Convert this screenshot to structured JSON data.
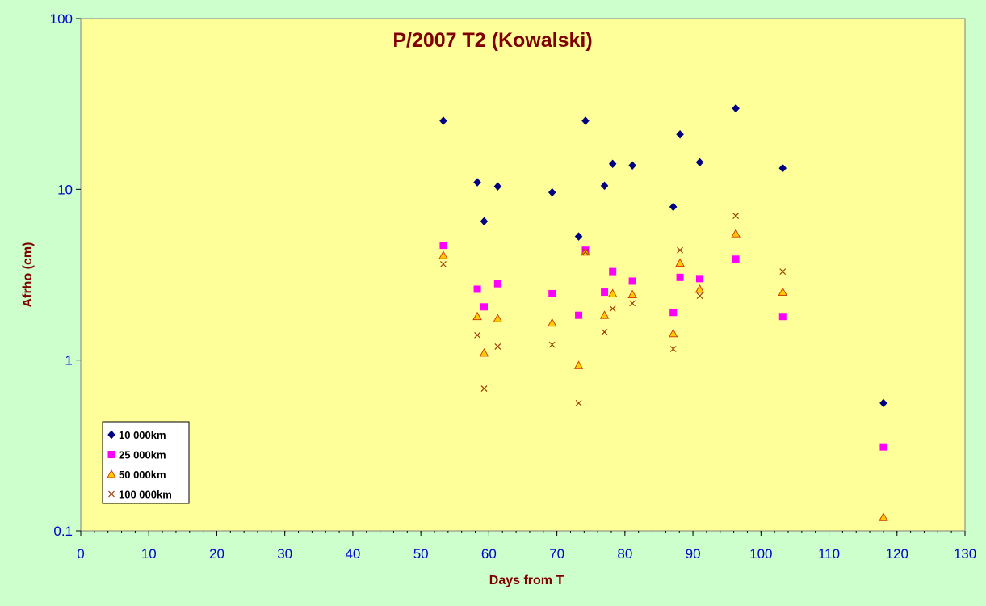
{
  "chart_data": {
    "type": "scatter",
    "title": "P/2007 T2 (Kowalski)",
    "xlabel": "Days from T",
    "ylabel": "Afrho (cm)",
    "xlim": [
      0,
      130
    ],
    "ylim": [
      0.1,
      100
    ],
    "yscale": "log",
    "x_major_ticks": [
      0,
      10,
      20,
      30,
      40,
      50,
      60,
      70,
      80,
      90,
      100,
      110,
      120,
      130
    ],
    "y_major_ticks": [
      0.1,
      1,
      10,
      100
    ],
    "x_tick_labels": [
      "0",
      "10",
      "20",
      "30",
      "40",
      "50",
      "60",
      "70",
      "80",
      "90",
      "100",
      "110",
      "120",
      "130"
    ],
    "y_tick_labels": [
      "0.1",
      "1",
      "10",
      "100"
    ],
    "grid": false,
    "legend_position": "bottom-left",
    "plot_background": "#ffff99",
    "page_background": "#ccffcc",
    "series": [
      {
        "name": "10 000km",
        "marker": "diamond",
        "color": "#000080",
        "points": [
          [
            53.3,
            25.2
          ],
          [
            58.3,
            11.0
          ],
          [
            59.3,
            6.5
          ],
          [
            61.3,
            10.4
          ],
          [
            69.3,
            9.6
          ],
          [
            73.2,
            5.3
          ],
          [
            74.2,
            25.2
          ],
          [
            77.0,
            10.5
          ],
          [
            78.2,
            14.1
          ],
          [
            81.1,
            13.8
          ],
          [
            87.1,
            7.9
          ],
          [
            88.1,
            21.0
          ],
          [
            91.0,
            14.4
          ],
          [
            96.3,
            29.8
          ],
          [
            103.2,
            13.3
          ],
          [
            118.0,
            0.56
          ]
        ]
      },
      {
        "name": "25 000km",
        "marker": "square",
        "color": "#ff00ff",
        "points": [
          [
            53.3,
            4.7
          ],
          [
            58.3,
            2.6
          ],
          [
            59.3,
            2.05
          ],
          [
            61.3,
            2.8
          ],
          [
            69.3,
            2.45
          ],
          [
            73.2,
            1.83
          ],
          [
            74.2,
            4.4
          ],
          [
            77.0,
            2.5
          ],
          [
            78.2,
            3.3
          ],
          [
            81.1,
            2.9
          ],
          [
            87.1,
            1.9
          ],
          [
            88.1,
            3.05
          ],
          [
            91.0,
            3.0
          ],
          [
            96.3,
            3.9
          ],
          [
            103.2,
            1.8
          ],
          [
            118.0,
            0.31
          ]
        ]
      },
      {
        "name": "50 000km",
        "marker": "triangle",
        "color": "#ffcc00",
        "points": [
          [
            53.3,
            4.1
          ],
          [
            58.3,
            1.8
          ],
          [
            59.3,
            1.1
          ],
          [
            61.3,
            1.75
          ],
          [
            69.3,
            1.65
          ],
          [
            73.2,
            0.93
          ],
          [
            74.2,
            4.3
          ],
          [
            77.0,
            1.83
          ],
          [
            78.2,
            2.45
          ],
          [
            81.1,
            2.42
          ],
          [
            87.1,
            1.43
          ],
          [
            88.1,
            3.7
          ],
          [
            91.0,
            2.6
          ],
          [
            96.3,
            5.5
          ],
          [
            103.2,
            2.5
          ],
          [
            118.0,
            0.12
          ]
        ]
      },
      {
        "name": "100 000km",
        "marker": "x",
        "color": "#993300",
        "points": [
          [
            53.3,
            3.65
          ],
          [
            58.3,
            1.4
          ],
          [
            59.3,
            0.68
          ],
          [
            61.3,
            1.2
          ],
          [
            69.3,
            1.23
          ],
          [
            73.2,
            0.56
          ],
          [
            74.2,
            4.3
          ],
          [
            77.0,
            1.46
          ],
          [
            78.2,
            2.0
          ],
          [
            81.1,
            2.15
          ],
          [
            87.1,
            1.16
          ],
          [
            88.1,
            4.4
          ],
          [
            91.0,
            2.38
          ],
          [
            96.3,
            7.0
          ],
          [
            103.2,
            3.3
          ]
        ]
      }
    ]
  }
}
